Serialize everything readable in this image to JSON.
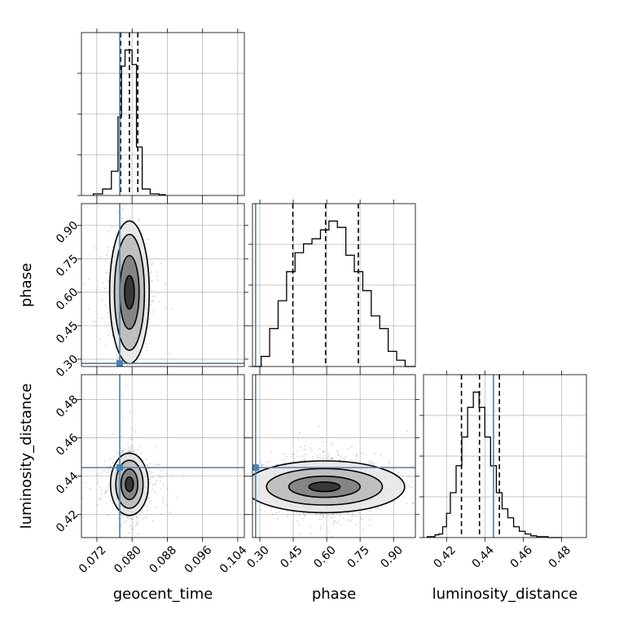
{
  "chart_data": {
    "type": "corner",
    "parameters": [
      "geocent_time",
      "phase",
      "luminosity_distance"
    ],
    "axis_labels": {
      "geocent_time": "geocent_time",
      "phase": "phase",
      "luminosity_distance": "luminosity_distance"
    },
    "ranges": {
      "geocent_time": [
        0.0685,
        0.1055
      ],
      "phase": [
        0.267,
        0.998
      ],
      "luminosity_distance": [
        0.408,
        0.493
      ]
    },
    "ticks": {
      "geocent_time": [
        "0.072",
        "0.080",
        "0.088",
        "0.096",
        "0.104"
      ],
      "phase": [
        "0.30",
        "0.45",
        "0.60",
        "0.75",
        "0.90"
      ],
      "luminosity_distance": [
        "0.42",
        "0.44",
        "0.46",
        "0.48"
      ]
    },
    "injection": {
      "geocent_time": 0.0772,
      "phase": 0.281,
      "luminosity_distance": 0.4445
    },
    "colors": {
      "truth": "#4682b4",
      "line": "#000000",
      "grid": "#b0b0b0"
    },
    "histograms": [
      {
        "parameter": "geocent_time",
        "edges": [
          0.0712,
          0.0733,
          0.0753,
          0.0768,
          0.0776,
          0.0784,
          0.0792,
          0.08,
          0.081,
          0.0823,
          0.0841,
          0.0861,
          0.0876
        ],
        "counts": [
          2,
          8,
          30,
          97,
          160,
          180,
          180,
          162,
          60,
          8,
          2,
          1
        ],
        "quantiles": [
          0.0774,
          0.0794,
          0.0813
        ]
      },
      {
        "parameter": "phase",
        "edges": [
          0.268,
          0.306,
          0.344,
          0.382,
          0.42,
          0.458,
          0.496,
          0.534,
          0.572,
          0.61,
          0.648,
          0.686,
          0.724,
          0.762,
          0.8,
          0.838,
          0.876,
          0.914,
          0.952,
          0.998
        ],
        "counts": [
          0,
          8,
          30,
          52,
          75,
          90,
          97,
          101,
          108,
          115,
          110,
          88,
          75,
          60,
          40,
          30,
          12,
          5,
          0
        ],
        "quantiles": [
          0.448,
          0.595,
          0.742
        ]
      },
      {
        "parameter": "luminosity_distance",
        "edges": [
          0.41,
          0.414,
          0.416,
          0.418,
          0.42,
          0.422,
          0.425,
          0.428,
          0.431,
          0.434,
          0.437,
          0.44,
          0.443,
          0.446,
          0.449,
          0.452,
          0.455,
          0.458,
          0.461,
          0.464,
          0.467,
          0.47,
          0.473,
          0.476,
          0.48
        ],
        "counts": [
          1,
          3,
          4,
          12,
          27,
          50,
          80,
          112,
          145,
          162,
          145,
          112,
          80,
          50,
          32,
          22,
          12,
          7,
          4,
          2,
          1,
          1,
          0,
          0
        ],
        "quantiles": [
          0.4278,
          0.4372,
          0.4476
        ]
      }
    ],
    "scatter_2d": [
      {
        "x": "geocent_time",
        "y": "phase",
        "center": [
          0.0794,
          0.6
        ],
        "sigma": [
          0.0016,
          0.11
        ],
        "contour_half_widths": [
          [
            0.0011,
            0.075
          ],
          [
            0.0022,
            0.165
          ],
          [
            0.0034,
            0.26
          ],
          [
            0.0045,
            0.32
          ]
        ]
      },
      {
        "x": "geocent_time",
        "y": "luminosity_distance",
        "center": [
          0.0794,
          0.4358
        ],
        "sigma": [
          0.0016,
          0.0068
        ],
        "contour_half_widths": [
          [
            0.0009,
            0.0038
          ],
          [
            0.0019,
            0.008
          ],
          [
            0.0031,
            0.0125
          ],
          [
            0.0043,
            0.0162
          ]
        ]
      },
      {
        "x": "phase",
        "y": "luminosity_distance",
        "center": [
          0.59,
          0.4345
        ],
        "sigma": [
          0.12,
          0.0068
        ],
        "contour_half_widths": [
          [
            0.07,
            0.0025
          ],
          [
            0.16,
            0.0055
          ],
          [
            0.26,
            0.0095
          ],
          [
            0.36,
            0.0135
          ]
        ]
      }
    ]
  }
}
